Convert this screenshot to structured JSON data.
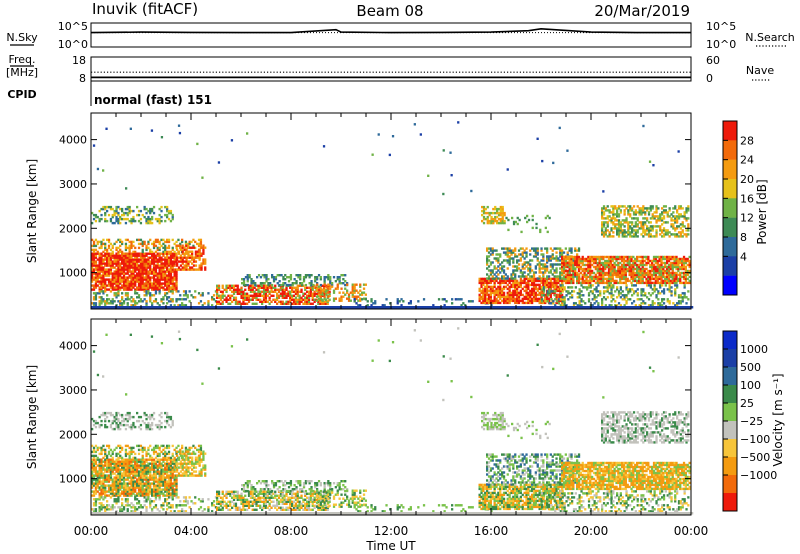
{
  "header": {
    "station": "Inuvik (fitACF)",
    "beam": "Beam 08",
    "date": "20/Mar/2019"
  },
  "side_labels": {
    "nsky": "N.Sky",
    "freq": "Freq.",
    "mhz": "[MHz]",
    "cpid": "CPID",
    "nsearch": "N.Search",
    "nave": "Nave"
  },
  "mode_text": "normal (fast) 151",
  "colors": {
    "power": [
      "#0000ff",
      "#1b3fa6",
      "#2e6a9a",
      "#3d8a55",
      "#6fb246",
      "#e6c11a",
      "#f49b10",
      "#f26a0a",
      "#ee1a0a"
    ],
    "velocity": [
      "#ee1a0a",
      "#f26a0a",
      "#f49b10",
      "#f7c53a",
      "#c2c2bc",
      "#7ac24a",
      "#3a8a4a",
      "#2e6a9a",
      "#1b3fa6",
      "#0b2ac8"
    ]
  },
  "chart_data": [
    {
      "type": "line",
      "name": "noise-panel",
      "left_label": "N.Sky",
      "right_label": "N.Search",
      "left_ticks": [
        "10^5",
        "10^0"
      ],
      "right_ticks": [
        "10^5",
        "10^0"
      ],
      "series": [
        {
          "name": "N.Sky",
          "style": "solid",
          "x": [
            0,
            2,
            4,
            6,
            8,
            9.8,
            10,
            12,
            14,
            16,
            17.5,
            18,
            20,
            22,
            24
          ],
          "y": [
            3.0,
            3.1,
            3.05,
            3.0,
            3.0,
            3.6,
            3.1,
            3.0,
            3.05,
            3.1,
            3.4,
            3.8,
            3.1,
            3.0,
            3.0
          ]
        },
        {
          "name": "N.Search",
          "style": "dotted",
          "x": [
            0,
            24
          ],
          "y": [
            3.0,
            3.0
          ]
        }
      ]
    },
    {
      "type": "line",
      "name": "freq-panel",
      "left_label": "Freq.",
      "left_units": "[MHz]",
      "right_label": "Nave",
      "left_ticks": [
        "18",
        "8"
      ],
      "right_ticks": [
        "60",
        "0"
      ],
      "series": [
        {
          "name": "Freq.",
          "style": "solid",
          "x": [
            0,
            24
          ],
          "y": [
            9.5,
            9.5
          ]
        },
        {
          "name": "Nave",
          "style": "dotted",
          "x": [
            0,
            24
          ],
          "y": [
            22,
            22
          ]
        }
      ]
    },
    {
      "type": "heatmap",
      "name": "power-rti",
      "ylabel": "Slant Range [km]",
      "yticks": [
        1000,
        2000,
        3000,
        4000
      ],
      "ylim": [
        180,
        4600
      ],
      "xlim": [
        0,
        24
      ],
      "colorbar_label": "Power [dB]",
      "colorbar_ticks": [
        "28",
        "24",
        "20",
        "16",
        "12",
        "8",
        "4"
      ],
      "clim": [
        0,
        32
      ]
    },
    {
      "type": "heatmap",
      "name": "velocity-rti",
      "ylabel": "Slant Range [km]",
      "yticks": [
        1000,
        2000,
        3000,
        4000
      ],
      "ylim": [
        180,
        4600
      ],
      "xlim": [
        0,
        24
      ],
      "colorbar_label": "Velocity [m s⁻¹]",
      "colorbar_ticks": [
        "1000",
        "500",
        "100",
        "25",
        "−25",
        "−100",
        "−500",
        "−1000"
      ]
    },
    {
      "type": "axis",
      "name": "time-axis",
      "xlabel": "Time UT",
      "xticks": [
        "00:00",
        "04:00",
        "08:00",
        "12:00",
        "16:00",
        "20:00",
        "00:00"
      ]
    }
  ]
}
